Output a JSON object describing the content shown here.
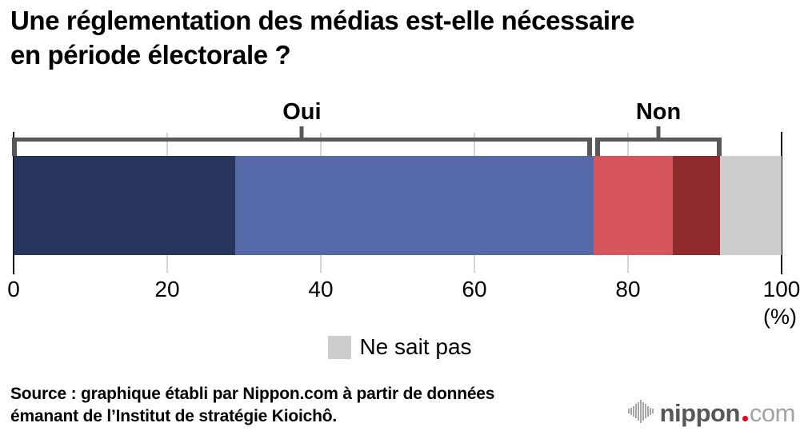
{
  "title": "Une réglementation des médias est-elle nécessaire\nen période électorale ?",
  "chart_data": {
    "type": "bar",
    "orientation": "horizontal_stacked",
    "title": "Une réglementation des médias est-elle nécessaire en période électorale ?",
    "x_axis": {
      "range": [
        0,
        100
      ],
      "ticks": [
        0,
        20,
        40,
        60,
        80,
        100
      ],
      "gridlines_at": [
        20,
        40,
        60,
        80
      ],
      "unit": "(%)"
    },
    "groups": [
      {
        "label": "Oui",
        "from": 0,
        "to": 75.5
      },
      {
        "label": "Non",
        "from": 75.5,
        "to": 92
      }
    ],
    "segments": [
      {
        "name": "oui-fonce",
        "group": "Oui",
        "value": 28.9,
        "color": "#27345B"
      },
      {
        "name": "oui-clair",
        "group": "Oui",
        "value": 46.6,
        "color": "#5569A8"
      },
      {
        "name": "non-clair",
        "group": "Non",
        "value": 10.3,
        "color": "#D5555B"
      },
      {
        "name": "non-fonce",
        "group": "Non",
        "value": 6.2,
        "color": "#8E2A2C"
      },
      {
        "name": "ne-sait-pas",
        "group": null,
        "value": 8.0,
        "color": "#CDCDCD"
      }
    ],
    "legend": [
      {
        "label": "Ne sait pas",
        "color": "#CDCDCD"
      }
    ],
    "legend_position": "bottom-center",
    "grid": true
  },
  "source": "Source : graphique établi par Nippon.com à partir de données\némanant de l’Institut de stratégie Kioichô.",
  "logo": {
    "name": "nippon",
    "tld": "com",
    "dot_color": "#E60012"
  },
  "colors": {
    "bracket": "#58585B",
    "gridline": "#D4D4D4",
    "axis": "#0d0d0d"
  }
}
